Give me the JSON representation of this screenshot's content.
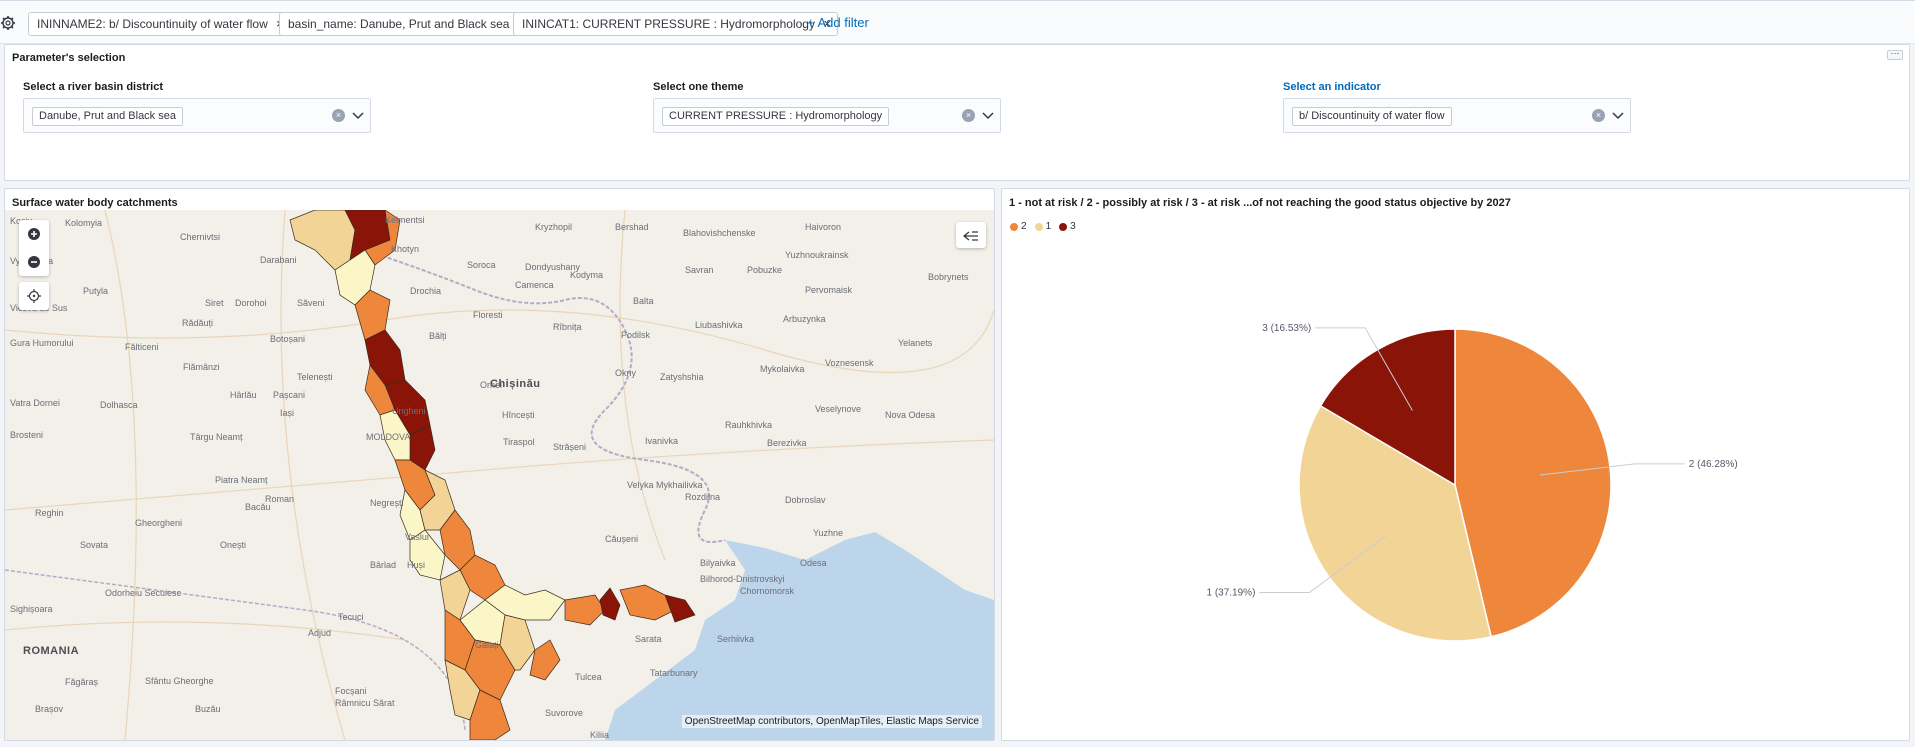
{
  "filters": [
    {
      "label": "ININNAME2: b/ Discountinuity of water flow"
    },
    {
      "label": "basin_name: Danube, Prut and Black sea"
    },
    {
      "label": "ININCAT1: CURRENT PRESSURE : Hydromorphology"
    }
  ],
  "add_filter": "+ Add filter",
  "params": {
    "title": "Parameter's selection",
    "basin": {
      "label": "Select a river basin district",
      "value": "Danube, Prut and Black sea"
    },
    "theme": {
      "label": "Select one theme",
      "value": "CURRENT PRESSURE : Hydromorphology"
    },
    "indicator": {
      "label": "Select an indicator",
      "value": "b/ Discountinuity of water flow"
    }
  },
  "map": {
    "title": "Surface water body catchments",
    "attribution": "OpenStreetMap contributors, OpenMapTiles, Elastic Maps Service",
    "place_labels": [
      "Kosiv",
      "Kolomyia",
      "Chernivtsi",
      "Kelmentsi",
      "Khotyn",
      "Vyzhnytsia",
      "Darabani",
      "Dondyushany",
      "Soroca",
      "Drochia",
      "Putyla",
      "Siret",
      "Dorohoi",
      "Săveni",
      "Floresti",
      "Camenca",
      "Kryzhopil",
      "Bershad",
      "Blahovishchenske",
      "Haivoron",
      "Pervomaisk",
      "Kodyma",
      "Savran",
      "Pobuzke",
      "Yuzhnoukrainsk",
      "Bobrynets",
      "Vicovu de Sus",
      "Rădăuți",
      "Botoșani",
      "Bălți",
      "Rîbnița",
      "Balta",
      "Podilsk",
      "Liubashivka",
      "Arbuzynka",
      "Yelanets",
      "Gura Humorului",
      "Fălticeni",
      "Flămânzi",
      "Telenești",
      "Orhei",
      "Okny",
      "Zatyshshia",
      "Mykolaivka",
      "Voznesensk",
      "Vatra Dornei",
      "Dolhasca",
      "Hârlău",
      "Pașcani",
      "Iași",
      "Ungheni",
      "MOLDOVA",
      "Chișinău",
      "Strășeni",
      "Hîncești",
      "Tiraspol",
      "Velyka Mykhailivka",
      "Ivanivka",
      "Rauhkhivka",
      "Berezivka",
      "Veselynove",
      "Nova Odesa",
      "Brosteni",
      "Târgu Neamț",
      "Roman",
      "Vaslui",
      "Negrești",
      "Dobroslav",
      "Rozdilna",
      "Yuzhne",
      "Odesa",
      "Piatra Neamț",
      "Bacău",
      "Onești",
      "Bârlad",
      "Huși",
      "Căușeni",
      "Bilhorod-Dnistrovskyi",
      "Bilyaivka",
      "Chornomorsk",
      "Reghin",
      "Gheorgheni",
      "Sovata",
      "Adjud",
      "Focșani",
      "Tecuci",
      "Galați",
      "Tulcea",
      "Odorheiu Secuiesc",
      "Sighișoara",
      "Sarata",
      "Serhiivka",
      "Tatarbunary",
      "Suvorove",
      "Kiliia",
      "ROMANIA",
      "Făgăraș",
      "Sfântu Gheorghe",
      "Brașov",
      "Buzău",
      "Râmnicu Sărat"
    ]
  },
  "chart": {
    "title": "1 - not at risk / 2 - possibly at risk / 3 - at risk ...of not reaching the good status objective by 2027"
  },
  "chart_data": {
    "type": "pie",
    "title": "1 - not at risk / 2 - possibly at risk / 3 - at risk ...of not reaching the good status objective by 2027",
    "legend": [
      "2",
      "1",
      "3"
    ],
    "legend_placement": "top-left",
    "slices": [
      {
        "name": "2",
        "value": 46.28,
        "label": "2 (46.28%)",
        "color": "#ee873b"
      },
      {
        "name": "1",
        "value": 37.19,
        "label": "1 (37.19%)",
        "color": "#f3d497"
      },
      {
        "name": "3",
        "value": 16.53,
        "label": "3 (16.53%)",
        "color": "#8a1408"
      }
    ]
  },
  "colors": {
    "accent": "#006bb8",
    "risk_2": "#ee873b",
    "risk_1": "#f3d497",
    "risk_3": "#8a1408"
  }
}
